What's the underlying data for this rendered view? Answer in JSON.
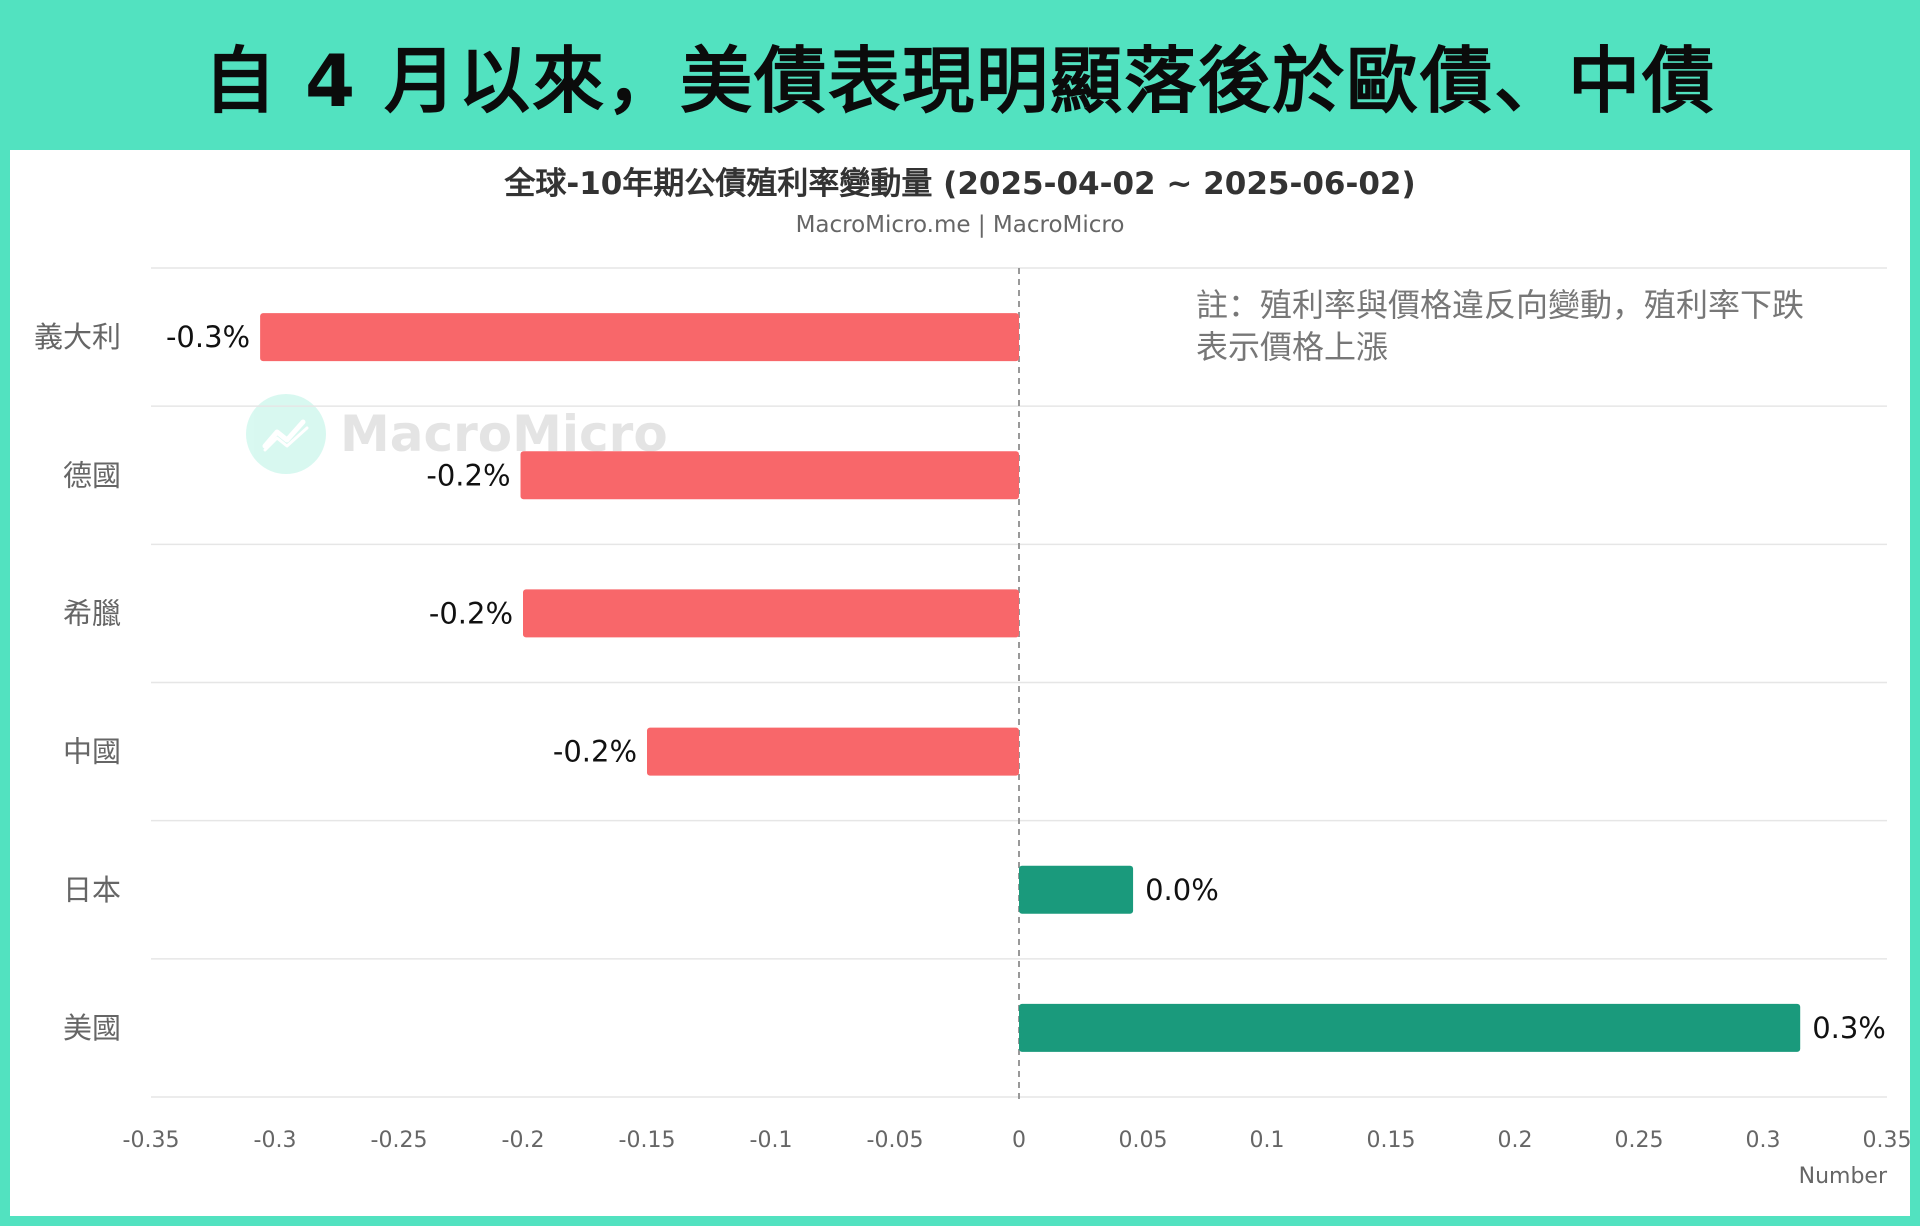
{
  "headline": "自 4 月以來，美債表現明顯落後於歐債、中債",
  "note": {
    "line1": "註：殖利率與價格違反向變動，殖利率下跌",
    "line2": "表示價格上漲"
  },
  "watermark": {
    "text": "MacroMicro",
    "icon": "macromicro-logo-icon"
  },
  "colors": {
    "background_frame": "#52e2c0",
    "negative_bar": "#f8676a",
    "positive_bar": "#1a9a7c",
    "gridline": "#e6e6e6",
    "zero_line": "#999999"
  },
  "chart_data": {
    "type": "bar",
    "orientation": "horizontal",
    "title": "全球-10年期公債殖利率變動量 (2025-04-02 ~ 2025-06-02)",
    "subtitle": "MacroMicro.me | MacroMicro",
    "categories": [
      "義大利",
      "德國",
      "希臘",
      "中國",
      "日本",
      "美國"
    ],
    "values": [
      -0.306,
      -0.201,
      -0.2,
      -0.15,
      0.046,
      0.315
    ],
    "data_labels": [
      "-0.3%",
      "-0.2%",
      "-0.2%",
      "-0.2%",
      "0.0%",
      "0.3%"
    ],
    "xlim": [
      -0.35,
      0.35
    ],
    "xticks": [
      -0.35,
      -0.3,
      -0.25,
      -0.2,
      -0.15,
      -0.1,
      -0.05,
      0,
      0.05,
      0.1,
      0.15,
      0.2,
      0.25,
      0.3,
      0.35
    ],
    "xtick_labels": [
      "-0.35",
      "-0.3",
      "-0.25",
      "-0.2",
      "-0.15",
      "-0.1",
      "-0.05",
      "0",
      "0.05",
      "0.1",
      "0.15",
      "0.2",
      "0.25",
      "0.3",
      "0.35"
    ],
    "xlabel": "Number",
    "grid": "horizontal",
    "legend": "none"
  }
}
